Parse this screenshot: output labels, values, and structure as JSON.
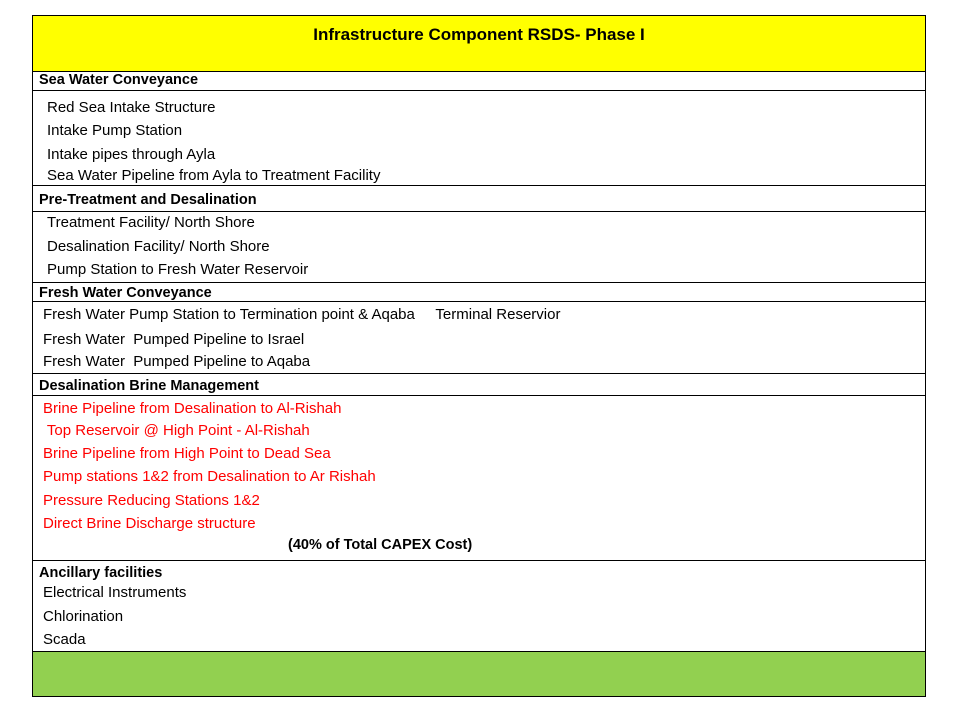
{
  "title": "Infrastructure Component RSDS- Phase I",
  "sections": [
    {
      "header": "Sea Water Conveyance",
      "items": [
        "Red Sea Intake Structure",
        "Intake Pump Station",
        "Intake pipes through Ayla",
        "Sea Water Pipeline from Ayla to Treatment Facility"
      ]
    },
    {
      "header": "Pre-Treatment and Desalination",
      "items": [
        "Treatment Facility/ North Shore",
        "Desalination Facility/ North Shore",
        "Pump Station to Fresh Water Reservoir"
      ]
    },
    {
      "header": "Fresh Water Conveyance",
      "items": [
        "Fresh Water Pump Station to Termination point & Aqaba     Terminal Reservior",
        "Fresh Water  Pumped Pipeline to Israel",
        "Fresh Water  Pumped Pipeline to Aqaba"
      ]
    },
    {
      "header": "Desalination Brine Management",
      "items": [
        "Brine Pipeline from Desalination to Al-Rishah",
        " Top Reservoir @ High Point - Al-Rishah",
        "Brine Pipeline from High Point to Dead Sea",
        "Pump stations 1&2 from Desalination to Ar Rishah",
        "Pressure Reducing Stations 1&2",
        "Direct Brine Discharge structure"
      ],
      "note": "(40% of Total CAPEX Cost)"
    },
    {
      "header": "Ancillary facilities",
      "items": [
        "Electrical Instruments",
        "Chlorination",
        "Scada"
      ]
    }
  ],
  "colors": {
    "title_bg": "#ffff00",
    "footer_bg": "#92d050",
    "brine_text": "#ff0000"
  }
}
